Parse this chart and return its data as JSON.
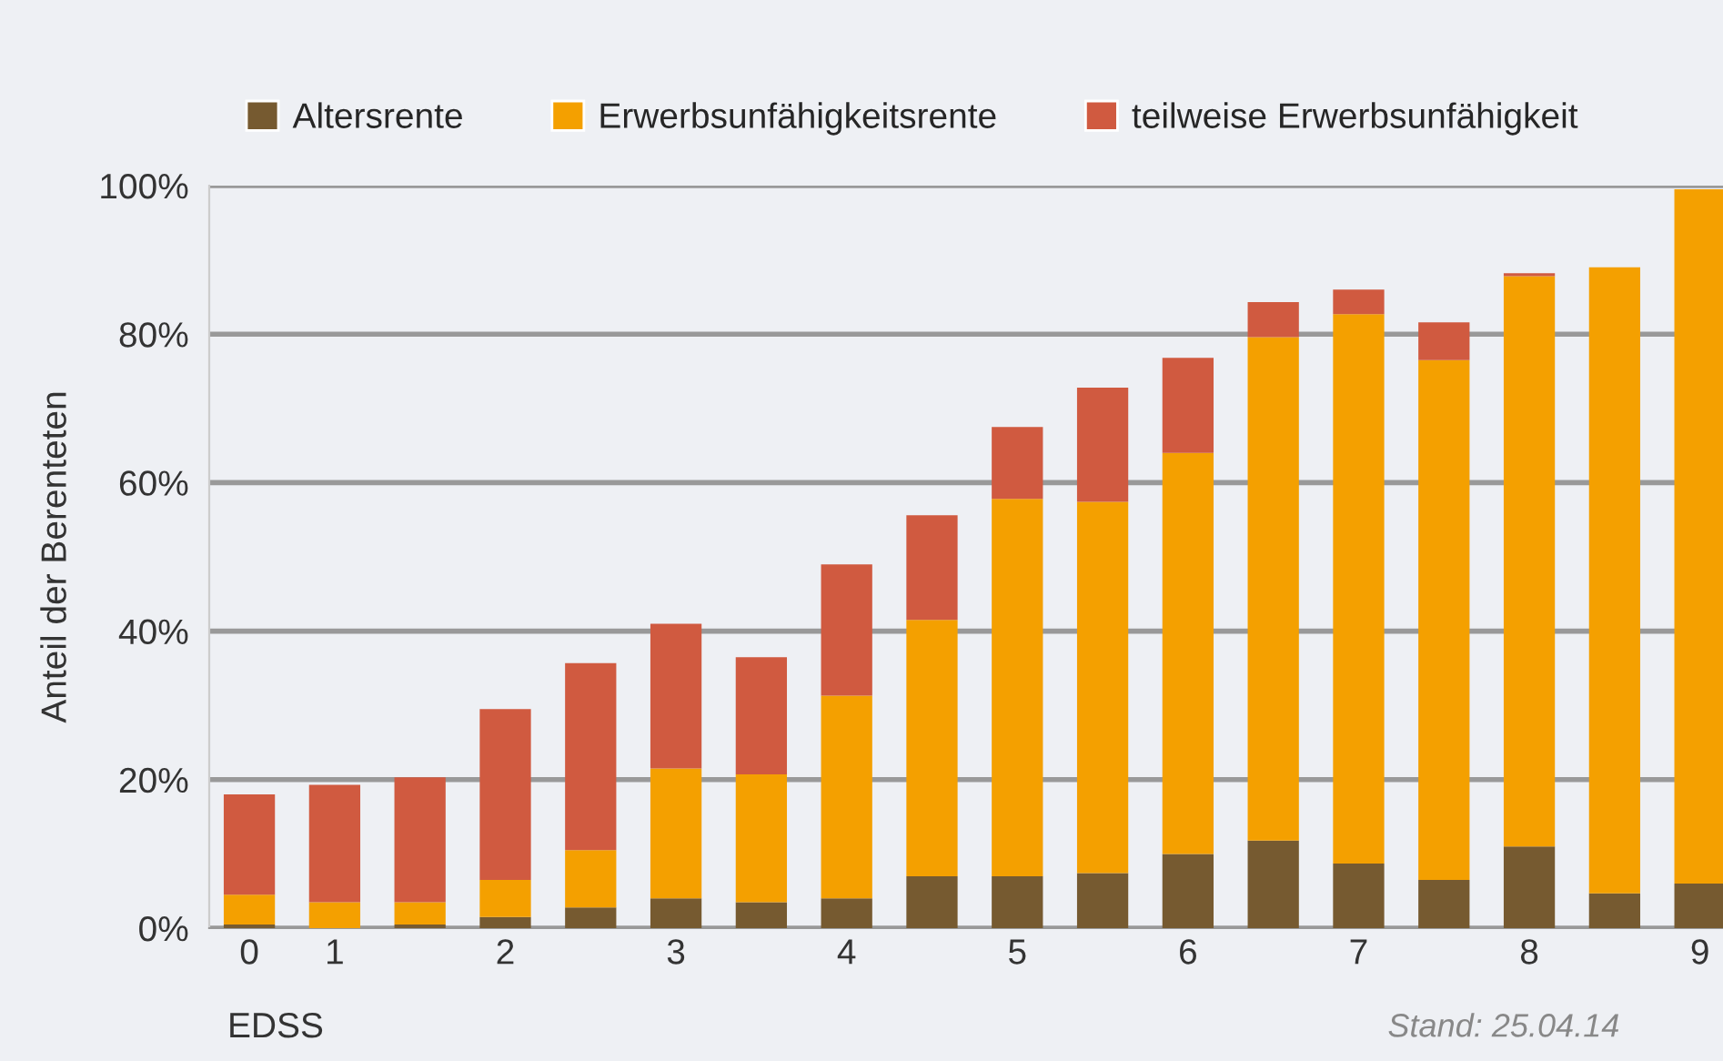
{
  "chart_data": {
    "type": "bar",
    "stacked": true,
    "xlabel": "EDSS",
    "ylabel": "Anteil der Berenteten",
    "categories": [
      "0",
      "1",
      null,
      "2",
      null,
      "3",
      null,
      "4",
      null,
      "5",
      null,
      "6",
      null,
      "7",
      null,
      "8",
      null,
      "9"
    ],
    "series": [
      {
        "name": "Altersrente",
        "color": "#765a30",
        "values": [
          0.5,
          0,
          0.5,
          1.5,
          2.8,
          4,
          3.5,
          4,
          7,
          7,
          7.4,
          10,
          11.8,
          8.7,
          6.5,
          11,
          4.7,
          6
        ]
      },
      {
        "name": "Erwerbsunfähigkeitsrente",
        "color": "#f4a000",
        "values": [
          4,
          3.5,
          3,
          5,
          7.7,
          17.5,
          17.2,
          27.3,
          34.5,
          50.8,
          50,
          54,
          67.8,
          74,
          70,
          76.8,
          84.3,
          93.5
        ]
      },
      {
        "name": "teilweise Erwerbsunfähigkeit",
        "color": "#d05a40",
        "values": [
          13.5,
          15.8,
          16.8,
          23,
          25.2,
          19.5,
          15.8,
          17.7,
          14.1,
          9.7,
          15.4,
          12.8,
          4.7,
          3.3,
          5.1,
          0.4,
          0,
          0
        ]
      }
    ],
    "ylim": [
      0,
      100
    ],
    "yticks": [
      {
        "value": 0,
        "label": "0%"
      },
      {
        "value": 20,
        "label": "20%"
      },
      {
        "value": 40,
        "label": "40%"
      },
      {
        "value": 60,
        "label": "60%"
      },
      {
        "value": 80,
        "label": "80%"
      },
      {
        "value": 100,
        "label": "100%"
      }
    ],
    "grid": "y",
    "legend": "top",
    "annotations": [
      "Stand: 25.04.14"
    ]
  }
}
